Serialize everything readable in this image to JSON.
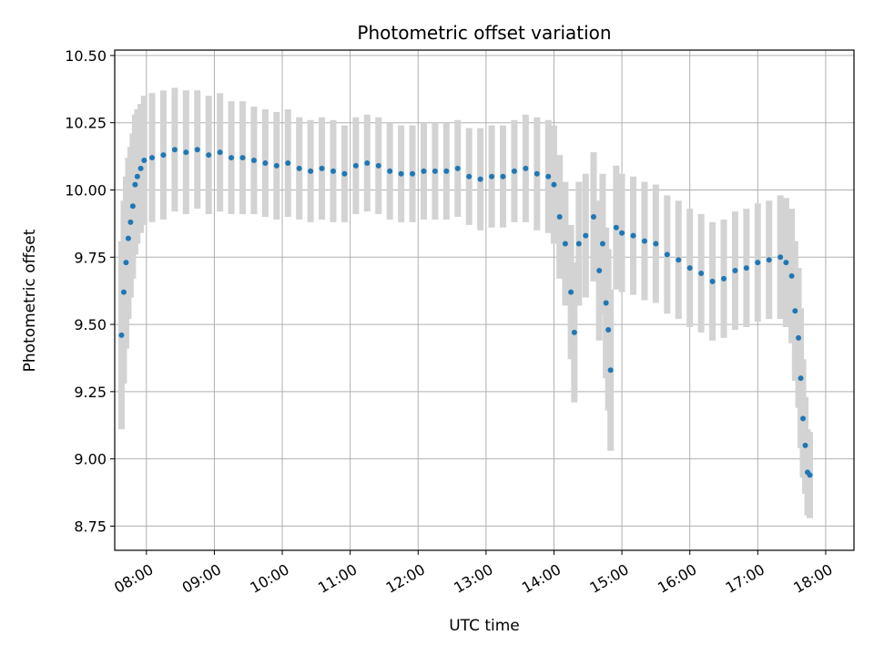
{
  "chart_data": {
    "type": "scatter",
    "title": "Photometric offset variation",
    "xlabel": "UTC time",
    "ylabel": "Photometric offset",
    "x_ticks": [
      "08:00",
      "09:00",
      "10:00",
      "11:00",
      "12:00",
      "13:00",
      "14:00",
      "15:00",
      "16:00",
      "17:00",
      "18:00"
    ],
    "y_ticks": [
      "8.75",
      "9.00",
      "9.25",
      "9.50",
      "9.75",
      "10.00",
      "10.25",
      "10.50"
    ],
    "xlim": [
      "07:32",
      "18:25"
    ],
    "ylim": [
      8.66,
      10.52
    ],
    "grid": true,
    "marker_color": "#1f77b4",
    "errorbar_color": "#d3d3d3",
    "series": [
      {
        "x": [
          "07:38",
          "07:40",
          "07:42",
          "07:44",
          "07:46",
          "07:48",
          "07:50",
          "07:52",
          "07:55",
          "07:58",
          "08:05",
          "08:15",
          "08:25",
          "08:35",
          "08:45",
          "08:55",
          "09:05",
          "09:15",
          "09:25",
          "09:35",
          "09:45",
          "09:55",
          "10:05",
          "10:15",
          "10:25",
          "10:35",
          "10:45",
          "10:55",
          "11:05",
          "11:15",
          "11:25",
          "11:35",
          "11:45",
          "11:55",
          "12:05",
          "12:15",
          "12:25",
          "12:35",
          "12:45",
          "12:55",
          "13:05",
          "13:15",
          "13:25",
          "13:35",
          "13:45",
          "13:55",
          "14:00",
          "14:05",
          "14:10",
          "14:15",
          "14:18",
          "14:22",
          "14:28",
          "14:35",
          "14:40",
          "14:43",
          "14:46",
          "14:48",
          "14:50",
          "14:55",
          "15:00",
          "15:10",
          "15:20",
          "15:30",
          "15:40",
          "15:50",
          "16:00",
          "16:10",
          "16:20",
          "16:30",
          "16:40",
          "16:50",
          "17:00",
          "17:10",
          "17:20",
          "17:25",
          "17:30",
          "17:33",
          "17:36",
          "17:38",
          "17:40",
          "17:42",
          "17:44",
          "17:46"
        ],
        "y": [
          9.46,
          9.62,
          9.73,
          9.82,
          9.88,
          9.94,
          10.02,
          10.05,
          10.08,
          10.11,
          10.12,
          10.13,
          10.15,
          10.14,
          10.15,
          10.13,
          10.14,
          10.12,
          10.12,
          10.11,
          10.1,
          10.09,
          10.1,
          10.08,
          10.07,
          10.08,
          10.07,
          10.06,
          10.09,
          10.1,
          10.09,
          10.07,
          10.06,
          10.06,
          10.07,
          10.07,
          10.07,
          10.08,
          10.05,
          10.04,
          10.05,
          10.05,
          10.07,
          10.08,
          10.06,
          10.05,
          10.02,
          9.9,
          9.8,
          9.62,
          9.47,
          9.8,
          9.83,
          9.9,
          9.7,
          9.8,
          9.58,
          9.48,
          9.33,
          9.86,
          9.84,
          9.83,
          9.81,
          9.8,
          9.76,
          9.74,
          9.71,
          9.69,
          9.66,
          9.67,
          9.7,
          9.71,
          9.73,
          9.74,
          9.75,
          9.73,
          9.68,
          9.55,
          9.45,
          9.3,
          9.15,
          9.05,
          8.95,
          8.94
        ],
        "err": [
          0.35,
          0.34,
          0.32,
          0.3,
          0.28,
          0.27,
          0.26,
          0.25,
          0.24,
          0.24,
          0.24,
          0.24,
          0.23,
          0.23,
          0.22,
          0.22,
          0.22,
          0.21,
          0.21,
          0.2,
          0.2,
          0.2,
          0.2,
          0.19,
          0.19,
          0.19,
          0.19,
          0.18,
          0.18,
          0.18,
          0.18,
          0.18,
          0.18,
          0.18,
          0.18,
          0.18,
          0.18,
          0.18,
          0.18,
          0.19,
          0.19,
          0.19,
          0.19,
          0.2,
          0.21,
          0.21,
          0.22,
          0.23,
          0.23,
          0.25,
          0.26,
          0.23,
          0.23,
          0.24,
          0.26,
          0.26,
          0.28,
          0.3,
          0.3,
          0.23,
          0.22,
          0.22,
          0.22,
          0.22,
          0.22,
          0.22,
          0.22,
          0.22,
          0.22,
          0.22,
          0.22,
          0.22,
          0.22,
          0.22,
          0.23,
          0.24,
          0.25,
          0.26,
          0.26,
          0.26,
          0.22,
          0.18,
          0.16,
          0.16
        ]
      }
    ]
  }
}
